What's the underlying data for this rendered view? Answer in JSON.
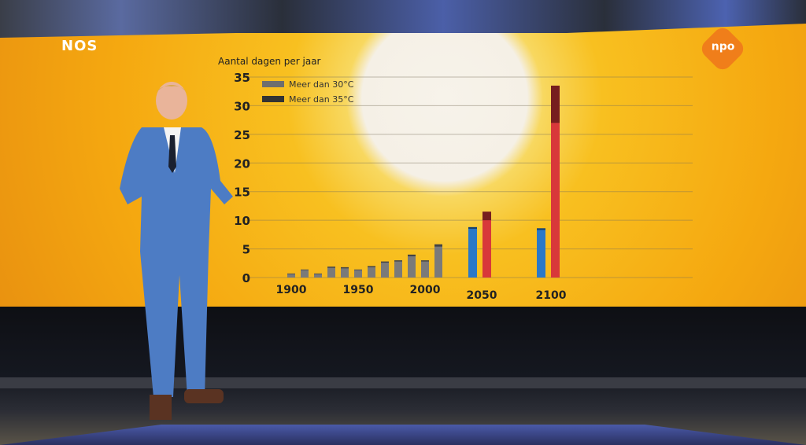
{
  "broadcaster_logo": "NOS",
  "channel_logo": "npo",
  "chart_data": {
    "type": "bar",
    "stacked": true,
    "ylabel": "Aantal dagen per jaar",
    "ylim": [
      0,
      35
    ],
    "yticks": [
      0,
      5,
      10,
      15,
      20,
      25,
      30,
      35
    ],
    "xtick_labels": [
      "1900",
      "1950",
      "2000",
      "2050",
      "2100"
    ],
    "grid": true,
    "legend_placement": "top-left",
    "legend": [
      {
        "label": "Meer dan 30°C",
        "color": "#6e6e6e"
      },
      {
        "label": "Meer dan 35°C",
        "color": "#333333"
      }
    ],
    "historical": {
      "x": [
        1900,
        1910,
        1920,
        1930,
        1940,
        1950,
        1960,
        1970,
        1980,
        1990,
        2000,
        2010
      ],
      "total": [
        0.7,
        1.4,
        0.7,
        1.9,
        1.8,
        1.4,
        2.0,
        2.8,
        3.0,
        4.0,
        3.0,
        5.8
      ],
      "above35": [
        0.1,
        0.1,
        0.1,
        0.2,
        0.2,
        0.1,
        0.2,
        0.2,
        0.2,
        0.3,
        0.2,
        0.4
      ],
      "color": "#7a7a7a"
    },
    "scenarios": [
      {
        "x": 2050,
        "bars": [
          {
            "total": 8.8,
            "above35": 0.3,
            "color": "#2a78c8"
          },
          {
            "total": 11.5,
            "above35": 1.5,
            "color": "#d8383a"
          }
        ]
      },
      {
        "x": 2100,
        "bars": [
          {
            "total": 8.6,
            "above35": 0.3,
            "color": "#2a78c8"
          },
          {
            "total": 33.5,
            "above35": 6.5,
            "color": "#d8383a"
          }
        ]
      }
    ]
  }
}
